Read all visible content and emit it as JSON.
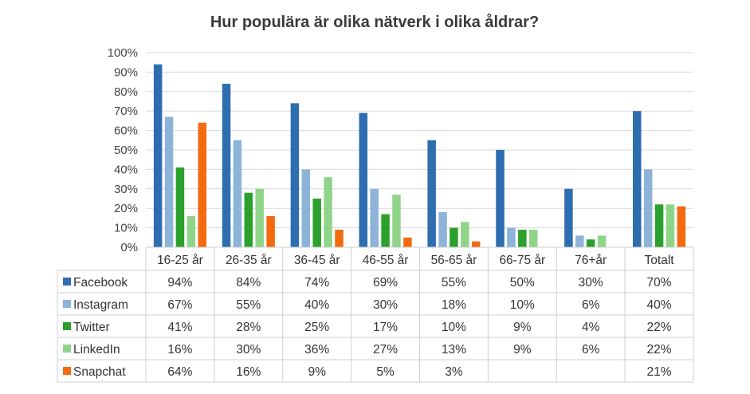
{
  "chart_data": {
    "type": "bar",
    "title": "Hur populära är olika nätverk i olika åldrar?",
    "categories": [
      "16-25 år",
      "26-35 år",
      "36-45 år",
      "46-55 år",
      "56-65 år",
      "66-75 år",
      "76+år",
      "Totalt"
    ],
    "ylim": [
      0,
      100
    ],
    "yticks": [
      "0%",
      "10%",
      "20%",
      "30%",
      "40%",
      "50%",
      "60%",
      "70%",
      "80%",
      "90%",
      "100%"
    ],
    "grid": true,
    "legend": "data-table",
    "series": [
      {
        "name": "Facebook",
        "color": "#2e6db0",
        "values": [
          94,
          84,
          74,
          69,
          55,
          50,
          30,
          70
        ],
        "labels": [
          "94%",
          "84%",
          "74%",
          "69%",
          "55%",
          "50%",
          "30%",
          "70%"
        ]
      },
      {
        "name": "Instagram",
        "color": "#8db3d9",
        "values": [
          67,
          55,
          40,
          30,
          18,
          10,
          6,
          40
        ],
        "labels": [
          "67%",
          "55%",
          "40%",
          "30%",
          "18%",
          "10%",
          "6%",
          "40%"
        ]
      },
      {
        "name": "Twitter",
        "color": "#2ca02c",
        "values": [
          41,
          28,
          25,
          17,
          10,
          9,
          4,
          22
        ],
        "labels": [
          "41%",
          "28%",
          "25%",
          "17%",
          "10%",
          "9%",
          "4%",
          "22%"
        ]
      },
      {
        "name": "LinkedIn",
        "color": "#90d48a",
        "values": [
          16,
          30,
          36,
          27,
          13,
          9,
          6,
          22
        ],
        "labels": [
          "16%",
          "30%",
          "36%",
          "27%",
          "13%",
          "9%",
          "6%",
          "22%"
        ]
      },
      {
        "name": "Snapchat",
        "color": "#f36a10",
        "values": [
          64,
          16,
          9,
          5,
          3,
          null,
          null,
          21
        ],
        "labels": [
          "64%",
          "16%",
          "9%",
          "5%",
          "3%",
          "",
          "",
          "21%"
        ]
      }
    ]
  }
}
